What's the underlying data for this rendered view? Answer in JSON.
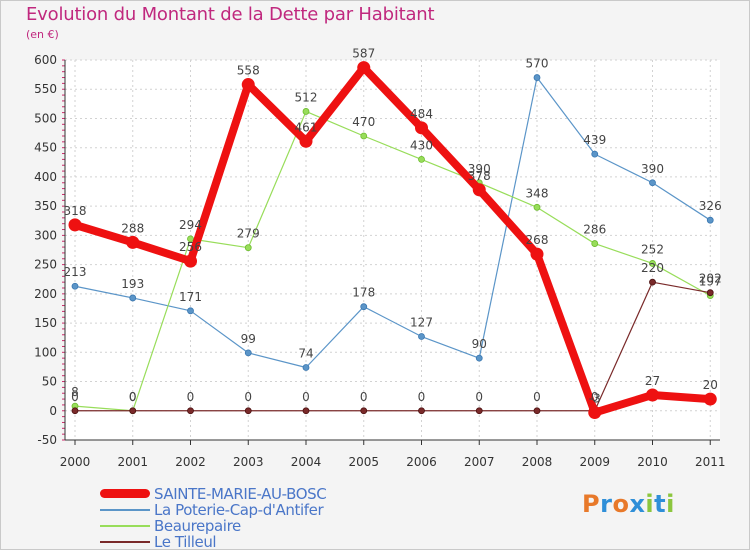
{
  "header": {
    "title": "Evolution du Montant de la Dette par Habitant",
    "unit": "(en €)"
  },
  "brand": {
    "letters": [
      "P",
      "r",
      "o",
      "x",
      "i",
      "t",
      "i"
    ],
    "colors": [
      "#e8792a",
      "#2f8fd8",
      "#e8792a",
      "#2f8fd8",
      "#8cc63e",
      "#2f8fd8",
      "#8cc63e"
    ]
  },
  "chart_data": {
    "type": "line",
    "title": "Evolution du Montant de la Dette par Habitant",
    "ylabel": "(en €)",
    "ylim": [
      -50,
      600
    ],
    "yticks": [
      -50,
      0,
      50,
      100,
      150,
      200,
      250,
      300,
      350,
      400,
      450,
      500,
      550,
      600
    ],
    "x": [
      "2000",
      "2001",
      "2002",
      "2003",
      "2004",
      "2005",
      "2006",
      "2007",
      "2008",
      "2009",
      "2010",
      "2011"
    ],
    "grid": true,
    "legend_position": "bottom-left",
    "series": [
      {
        "name": "SAINTE-MARIE-AU-BOSC",
        "color": "#ee1111",
        "emphasis": true,
        "values": [
          318,
          288,
          256,
          558,
          461,
          587,
          484,
          378,
          268,
          -3,
          27,
          20
        ],
        "labels": [
          "318",
          "288",
          "256",
          "558",
          "461",
          "587",
          "484",
          "378",
          "268",
          "-3",
          "27",
          "20"
        ]
      },
      {
        "name": "La Poterie-Cap-d'Antifer",
        "color": "#5b95c8",
        "values": [
          213,
          193,
          171,
          99,
          74,
          178,
          127,
          90,
          570,
          439,
          390,
          326
        ],
        "labels": [
          "213",
          "193",
          "171",
          "99",
          "74",
          "178",
          "127",
          "90",
          "570",
          "439",
          "390",
          "326"
        ]
      },
      {
        "name": "Beaurepaire",
        "color": "#98dd5a",
        "values": [
          8,
          0,
          294,
          279,
          512,
          470,
          430,
          390,
          348,
          286,
          252,
          197
        ],
        "labels": [
          "8",
          "0",
          "294",
          "279",
          "512",
          "470",
          "430",
          "390",
          "348",
          "286",
          "252",
          "197"
        ]
      },
      {
        "name": "Le Tilleul",
        "color": "#7a2a2a",
        "values": [
          0,
          0,
          0,
          0,
          0,
          0,
          0,
          0,
          0,
          0,
          220,
          202
        ],
        "labels": [
          "0",
          "0",
          "0",
          "0",
          "0",
          "0",
          "0",
          "0",
          "0",
          "0",
          "220",
          "202"
        ]
      }
    ]
  }
}
